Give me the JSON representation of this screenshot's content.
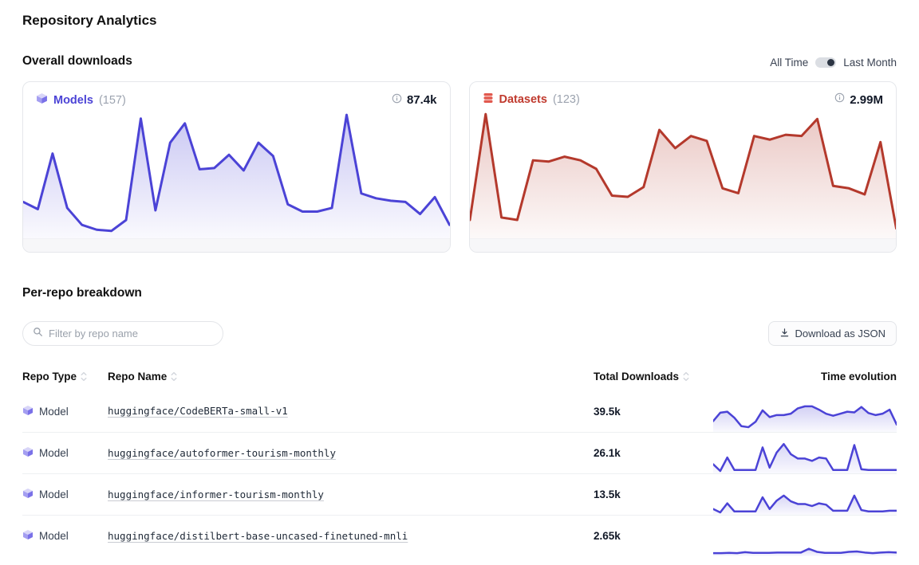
{
  "page": {
    "title": "Repository Analytics"
  },
  "overall": {
    "heading": "Overall downloads",
    "toggle": {
      "option_all": "All Time",
      "option_last": "Last Month",
      "selected": "Last Month"
    },
    "cards": [
      {
        "label": "Models",
        "count": "(157)",
        "value": "87.4k",
        "accent_color": "#4b43d6",
        "chart": {
          "type": "area",
          "color": "#4b43d6",
          "fill_top_opacity": 0.3,
          "stroke_width": 3,
          "values": [
            28,
            22,
            68,
            23,
            9,
            5,
            4,
            13,
            97,
            21,
            77,
            93,
            55,
            56,
            67,
            54,
            77,
            66,
            26,
            20,
            20,
            23,
            100,
            35,
            31,
            29,
            28,
            18,
            32,
            9
          ]
        }
      },
      {
        "label": "Datasets",
        "count": "(123)",
        "value": "2.99M",
        "accent_color": "#c03a2e",
        "chart": {
          "type": "area",
          "color": "#b4392c",
          "fill_top_opacity": 0.28,
          "stroke_width": 3,
          "values": [
            13,
            100,
            15,
            13,
            62,
            61,
            65,
            62,
            55,
            33,
            32,
            40,
            87,
            72,
            82,
            78,
            39,
            35,
            82,
            79,
            83,
            82,
            96,
            41,
            39,
            34,
            77,
            6
          ]
        }
      }
    ]
  },
  "breakdown": {
    "heading": "Per-repo breakdown",
    "filter": {
      "placeholder": "Filter by repo name",
      "value": ""
    },
    "download_button": "Download as JSON",
    "table": {
      "headers": [
        {
          "label": "Repo Type",
          "sortable": true
        },
        {
          "label": "Repo Name",
          "sortable": true
        },
        {
          "label": "Total Downloads",
          "sortable": true
        },
        {
          "label": "Time evolution",
          "sortable": false
        }
      ],
      "rows": [
        {
          "type": "Model",
          "name": "huggingface/CodeBERTa-small-v1",
          "downloads": "39.5k",
          "sparkline": {
            "type": "area",
            "color": "#4b43d6",
            "fill_top_opacity": 0.25,
            "stroke_width": 2.5,
            "values": [
              30,
              55,
              58,
              40,
              15,
              12,
              28,
              62,
              42,
              48,
              48,
              52,
              68,
              74,
              74,
              64,
              52,
              46,
              52,
              58,
              56,
              72,
              54,
              48,
              52,
              64,
              20
            ]
          }
        },
        {
          "type": "Model",
          "name": "huggingface/autoformer-tourism-monthly",
          "downloads": "26.1k",
          "sparkline": {
            "type": "area",
            "color": "#4b43d6",
            "fill_top_opacity": 0.22,
            "stroke_width": 2.5,
            "values": [
              25,
              5,
              45,
              8,
              8,
              8,
              8,
              75,
              15,
              60,
              85,
              55,
              42,
              42,
              35,
              45,
              42,
              8,
              8,
              8,
              82,
              10,
              8,
              8,
              8,
              8,
              8
            ]
          }
        },
        {
          "type": "Model",
          "name": "huggingface/informer-tourism-monthly",
          "downloads": "13.5k",
          "sparkline": {
            "type": "area",
            "color": "#4b43d6",
            "fill_top_opacity": 0.22,
            "stroke_width": 2.5,
            "values": [
              15,
              5,
              32,
              8,
              8,
              8,
              8,
              50,
              15,
              40,
              55,
              38,
              30,
              30,
              24,
              32,
              28,
              10,
              10,
              10,
              55,
              12,
              8,
              8,
              8,
              10,
              10
            ]
          }
        },
        {
          "type": "Model",
          "name": "huggingface/distilbert-base-uncased-finetuned-mnli",
          "downloads": "2.65k",
          "sparkline": {
            "type": "area",
            "color": "#4b43d6",
            "fill_top_opacity": 0.2,
            "stroke_width": 2.5,
            "values": [
              7,
              7,
              8,
              7,
              10,
              8,
              8,
              8,
              9,
              9,
              9,
              9,
              20,
              11,
              8,
              8,
              8,
              11,
              12,
              9,
              7,
              9,
              10,
              9
            ]
          }
        }
      ]
    }
  },
  "icons": {
    "model_icon": "cube-icon",
    "dataset_icon": "database-icon",
    "info_icon": "info-icon",
    "search_icon": "search-icon",
    "download_icon": "download-icon",
    "sort_icon": "sort-chevrons-icon"
  }
}
